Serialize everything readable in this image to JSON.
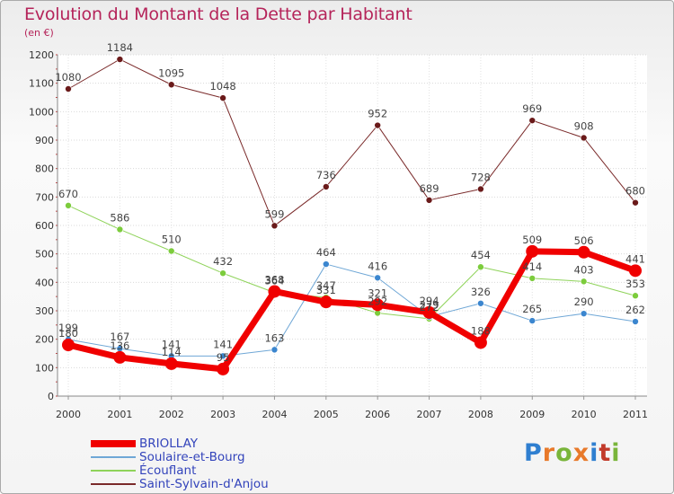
{
  "title": "Evolution du Montant de la Dette par Habitant",
  "unit": "(en €)",
  "logo": {
    "text": "Proxiti",
    "letters": [
      {
        "ch": "P",
        "color": "#2f7fd0"
      },
      {
        "ch": "r",
        "color": "#e8792a"
      },
      {
        "ch": "o",
        "color": "#79b53a"
      },
      {
        "ch": "x",
        "color": "#e8792a"
      },
      {
        "ch": "i",
        "color": "#2f7fd0"
      },
      {
        "ch": "t",
        "color": "#c23a2a"
      },
      {
        "ch": "i",
        "color": "#79b53a"
      }
    ]
  },
  "chart_data": {
    "type": "line",
    "title": "Evolution du Montant de la Dette par Habitant",
    "ylabel": "(en €)",
    "xlabel": "",
    "ylim": [
      0,
      1200
    ],
    "yticks": [
      0,
      100,
      200,
      300,
      400,
      500,
      600,
      700,
      800,
      900,
      1000,
      1100,
      1200
    ],
    "categories": [
      "2000",
      "2001",
      "2002",
      "2003",
      "2004",
      "2005",
      "2006",
      "2007",
      "2008",
      "2009",
      "2010",
      "2011"
    ],
    "grid": true,
    "legend_position": "bottom-left",
    "series": [
      {
        "name": "Saint-Sylvain-d'Anjou",
        "color": "#7a2a2a",
        "marker": "#6a1a1a",
        "width": 1,
        "values": [
          1080,
          1184,
          1095,
          1048,
          599,
          736,
          952,
          689,
          728,
          969,
          908,
          680
        ]
      },
      {
        "name": "Écouflant",
        "color": "#8fd35a",
        "marker": "#7ccc3c",
        "width": 1,
        "values": [
          670,
          586,
          510,
          432,
          364,
          347,
          292,
          272,
          454,
          414,
          403,
          353
        ]
      },
      {
        "name": "Soulaire-et-Bourg",
        "color": "#6fa7d6",
        "marker": "#3b86cf",
        "width": 1,
        "values": [
          199,
          167,
          141,
          141,
          163,
          464,
          416,
          279,
          326,
          265,
          290,
          262
        ]
      },
      {
        "name": "BRIOLLAY",
        "color": "#f00000",
        "marker": "#f00000",
        "width": 7,
        "values": [
          180,
          136,
          114,
          95,
          368,
          331,
          321,
          294,
          188,
          509,
          506,
          441
        ]
      }
    ],
    "legend_order": [
      "BRIOLLAY",
      "Soulaire-et-Bourg",
      "Écouflant",
      "Saint-Sylvain-d'Anjou"
    ]
  }
}
